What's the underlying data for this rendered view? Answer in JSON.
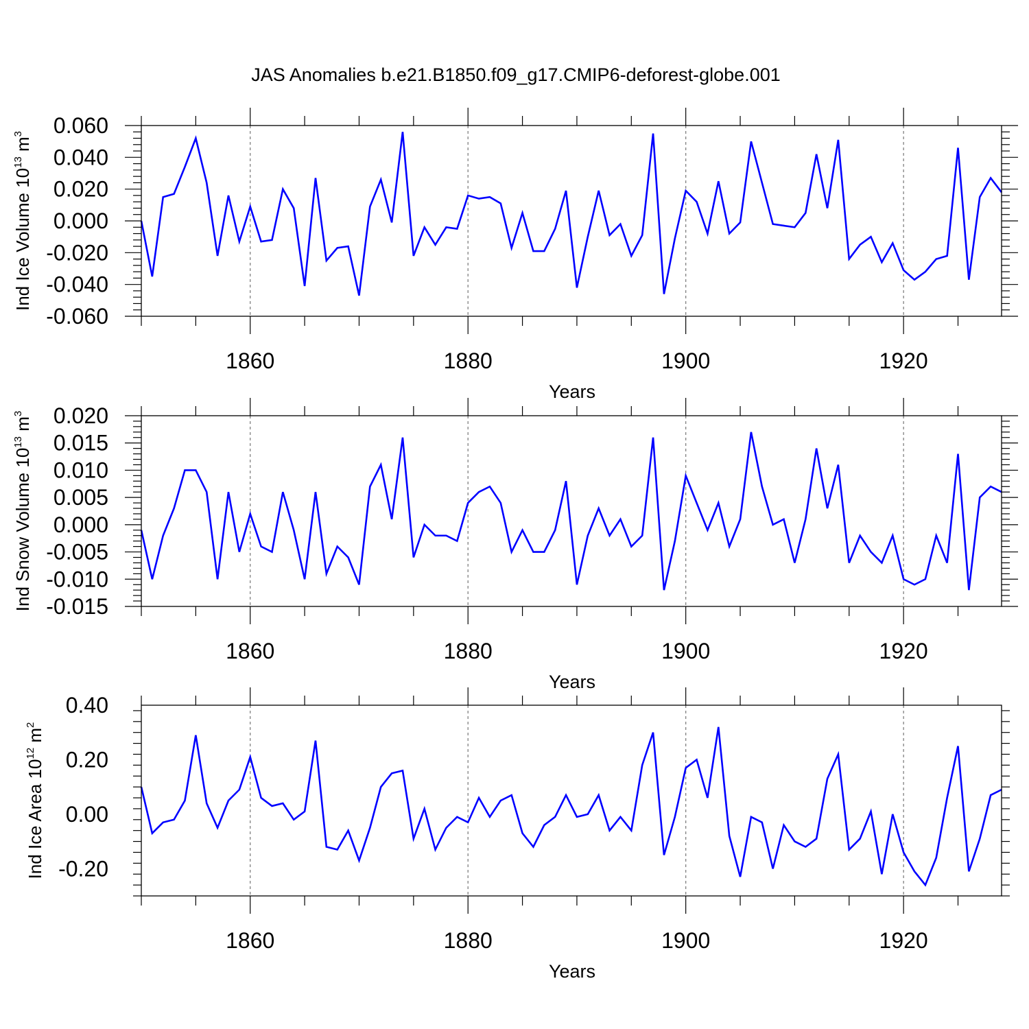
{
  "title": "JAS Anomalies b.e21.B1850.f09_g17.CMIP6-deforest-globe.001",
  "chart_data": [
    {
      "type": "line",
      "xlabel": "Years",
      "ylabel": {
        "prefix": "Ind Ice Volume 10",
        "exp": "13",
        "unit": " m",
        "unit_exp": "3"
      },
      "xlim": [
        1850,
        1929
      ],
      "ylim": [
        -0.06,
        0.06
      ],
      "yticks": [
        -0.06,
        -0.04,
        -0.02,
        0.0,
        0.02,
        0.04,
        0.06
      ],
      "ytick_labels": [
        "-0.060",
        "-0.040",
        "-0.020",
        "0.000",
        "0.020",
        "0.040",
        "0.060"
      ],
      "xticks": [
        1860,
        1880,
        1900,
        1920
      ],
      "xtick_labels": [
        "1860",
        "1880",
        "1900",
        "1920"
      ],
      "grid": "vertical dashed at labeled x ticks",
      "color": "#0000ff",
      "series": [
        {
          "x_start": 1850,
          "values": [
            0.0,
            -0.035,
            0.015,
            0.017,
            0.034,
            0.052,
            0.024,
            -0.022,
            0.016,
            -0.013,
            0.009,
            -0.013,
            -0.012,
            0.02,
            0.008,
            -0.041,
            0.027,
            -0.025,
            -0.017,
            -0.016,
            -0.047,
            0.009,
            0.026,
            -0.001,
            0.056,
            -0.022,
            -0.004,
            -0.015,
            -0.004,
            -0.005,
            0.016,
            0.014,
            0.015,
            0.011,
            -0.017,
            0.005,
            -0.019,
            -0.019,
            -0.005,
            0.019,
            -0.042,
            -0.01,
            0.019,
            -0.009,
            -0.002,
            -0.022,
            -0.009,
            0.055,
            -0.046,
            -0.011,
            0.019,
            0.012,
            -0.008,
            0.025,
            -0.008,
            -0.001,
            0.05,
            0.024,
            -0.002,
            -0.003,
            -0.004,
            0.005,
            0.042,
            0.008,
            0.051,
            -0.024,
            -0.015,
            -0.01,
            -0.026,
            -0.014,
            -0.031,
            -0.037,
            -0.032,
            -0.024,
            -0.022,
            0.046,
            -0.037,
            0.015,
            0.027,
            0.018
          ]
        }
      ]
    },
    {
      "type": "line",
      "xlabel": "Years",
      "ylabel": {
        "prefix": "Ind Snow Volume 10",
        "exp": "13",
        "unit": " m",
        "unit_exp": "3"
      },
      "xlim": [
        1850,
        1929
      ],
      "ylim": [
        -0.015,
        0.02
      ],
      "yticks": [
        -0.015,
        -0.01,
        -0.005,
        0.0,
        0.005,
        0.01,
        0.015,
        0.02
      ],
      "ytick_labels": [
        "-0.015",
        "-0.010",
        "-0.005",
        "0.000",
        "0.005",
        "0.010",
        "0.015",
        "0.020"
      ],
      "xticks": [
        1860,
        1880,
        1900,
        1920
      ],
      "xtick_labels": [
        "1860",
        "1880",
        "1900",
        "1920"
      ],
      "grid": "vertical dashed at labeled x ticks",
      "color": "#0000ff",
      "series": [
        {
          "x_start": 1850,
          "values": [
            -0.001,
            -0.01,
            -0.002,
            0.003,
            0.01,
            0.01,
            0.006,
            -0.01,
            0.006,
            -0.005,
            0.002,
            -0.004,
            -0.005,
            0.006,
            -0.001,
            -0.01,
            0.006,
            -0.009,
            -0.004,
            -0.006,
            -0.011,
            0.007,
            0.011,
            0.001,
            0.016,
            -0.006,
            0.0,
            -0.002,
            -0.002,
            -0.003,
            0.004,
            0.006,
            0.007,
            0.004,
            -0.005,
            -0.001,
            -0.005,
            -0.005,
            -0.001,
            0.008,
            -0.011,
            -0.002,
            0.003,
            -0.002,
            0.001,
            -0.004,
            -0.002,
            0.016,
            -0.012,
            -0.003,
            0.009,
            0.004,
            -0.001,
            0.004,
            -0.004,
            0.001,
            0.017,
            0.007,
            0.0,
            0.001,
            -0.007,
            0.001,
            0.014,
            0.003,
            0.011,
            -0.007,
            -0.002,
            -0.005,
            -0.007,
            -0.002,
            -0.01,
            -0.011,
            -0.01,
            -0.002,
            -0.007,
            0.013,
            -0.012,
            0.005,
            0.007,
            0.006
          ]
        }
      ]
    },
    {
      "type": "line",
      "xlabel": "Years",
      "ylabel": {
        "prefix": "Ind Ice Area 10",
        "exp": "12",
        "unit": " m",
        "unit_exp": "2"
      },
      "xlim": [
        1850,
        1929
      ],
      "ylim": [
        -0.3,
        0.4
      ],
      "yticks": [
        -0.2,
        0.0,
        0.2,
        0.4
      ],
      "ytick_labels": [
        "-0.20",
        "0.00",
        "0.20",
        "0.40"
      ],
      "xticks": [
        1860,
        1880,
        1900,
        1920
      ],
      "xtick_labels": [
        "1860",
        "1880",
        "1900",
        "1920"
      ],
      "grid": "vertical dashed at labeled x ticks",
      "color": "#0000ff",
      "series": [
        {
          "x_start": 1850,
          "values": [
            0.1,
            -0.07,
            -0.03,
            -0.02,
            0.05,
            0.29,
            0.04,
            -0.05,
            0.05,
            0.09,
            0.21,
            0.06,
            0.03,
            0.04,
            -0.02,
            0.01,
            0.27,
            -0.12,
            -0.13,
            -0.06,
            -0.17,
            -0.05,
            0.1,
            0.15,
            0.16,
            -0.09,
            0.02,
            -0.13,
            -0.05,
            -0.01,
            -0.03,
            0.06,
            -0.01,
            0.05,
            0.07,
            -0.07,
            -0.12,
            -0.04,
            -0.01,
            0.07,
            -0.01,
            0.0,
            0.07,
            -0.06,
            -0.01,
            -0.06,
            0.18,
            0.3,
            -0.15,
            -0.01,
            0.17,
            0.2,
            0.06,
            0.32,
            -0.08,
            -0.23,
            -0.01,
            -0.03,
            -0.2,
            -0.04,
            -0.1,
            -0.12,
            -0.09,
            0.13,
            0.22,
            -0.13,
            -0.09,
            0.01,
            -0.22,
            0.0,
            -0.14,
            -0.21,
            -0.26,
            -0.16,
            0.06,
            0.25,
            -0.21,
            -0.09,
            0.07,
            0.09
          ]
        }
      ]
    }
  ]
}
